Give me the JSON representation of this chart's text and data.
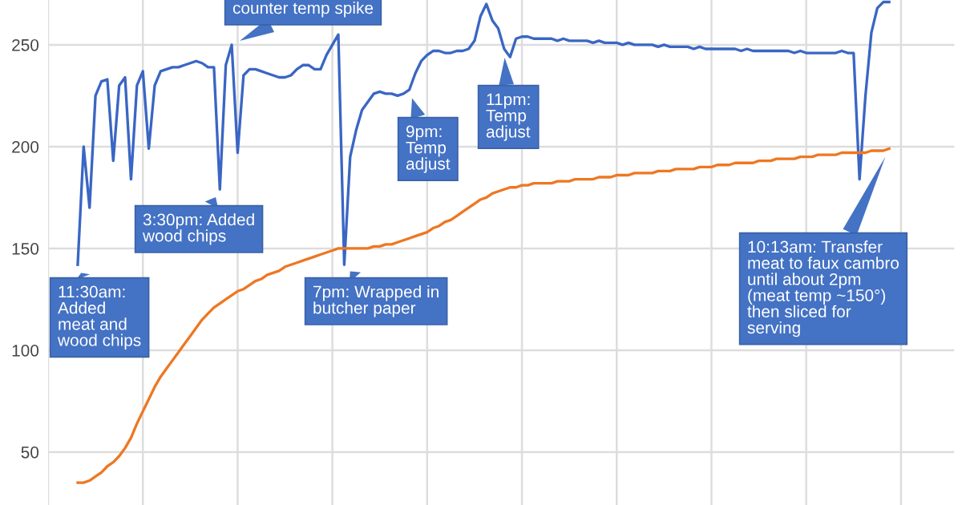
{
  "chart_data": {
    "type": "line",
    "categories": [
      null,
      null,
      null,
      null,
      null,
      null,
      null,
      null,
      null,
      null,
      null,
      null,
      null,
      null,
      null,
      null,
      null,
      null,
      null,
      null,
      null,
      null,
      null,
      null,
      null,
      null,
      null,
      null,
      null,
      null,
      null,
      null,
      null,
      null,
      null,
      null,
      null,
      null,
      null,
      null,
      null,
      null,
      null,
      null,
      null,
      null,
      null,
      null,
      null,
      null,
      null,
      null,
      null,
      null,
      null,
      null,
      null,
      null,
      null,
      null,
      null,
      null,
      null,
      null,
      null,
      null,
      null,
      null,
      null,
      null,
      null,
      null,
      null,
      null,
      null,
      null,
      null,
      null,
      null,
      null,
      null,
      null,
      null,
      null,
      null,
      null,
      null,
      null,
      null,
      null,
      null,
      null,
      null,
      null,
      null,
      null,
      null,
      null,
      null,
      null,
      null,
      null,
      null,
      null,
      null,
      null,
      null,
      null,
      null,
      null,
      null,
      null,
      null,
      null,
      null,
      null,
      null,
      null,
      null,
      null,
      null,
      null,
      null,
      null,
      null,
      null,
      null,
      null,
      null,
      null,
      null,
      null,
      null,
      null,
      null,
      null,
      null,
      null,
      null,
      null,
      null,
      null,
      null,
      null,
      null,
      null,
      null,
      null,
      null,
      null,
      null,
      null,
      null,
      null
    ],
    "series": [
      {
        "color": "#3a66c4",
        "values": [
          null,
          null,
          null,
          null,
          null,
          142,
          200,
          170,
          225,
          232,
          233,
          193,
          230,
          234,
          184,
          230,
          237,
          199,
          230,
          237,
          238,
          239,
          239,
          240,
          241,
          242,
          241,
          239,
          239,
          179,
          240,
          250,
          197,
          235,
          238,
          238,
          237,
          236,
          235,
          234,
          234,
          235,
          238,
          240,
          240,
          238,
          238,
          245,
          250,
          255,
          142,
          195,
          208,
          218,
          222,
          226,
          227,
          226,
          226,
          225,
          226,
          228,
          236,
          242,
          245,
          247,
          247,
          246,
          246,
          247,
          247,
          248,
          252,
          264,
          270,
          262,
          258,
          248,
          244,
          253,
          254,
          254,
          253,
          253,
          253,
          253,
          252,
          253,
          252,
          252,
          252,
          252,
          251,
          252,
          251,
          251,
          251,
          250,
          251,
          250,
          250,
          250,
          250,
          249,
          250,
          249,
          249,
          249,
          249,
          248,
          249,
          248,
          248,
          248,
          248,
          248,
          248,
          247,
          248,
          247,
          247,
          247,
          247,
          247,
          247,
          247,
          246,
          247,
          246,
          246,
          246,
          246,
          246,
          246,
          247,
          246,
          246,
          184,
          225,
          256,
          268,
          271,
          271,
          null,
          null,
          null,
          null,
          null,
          null,
          null,
          null,
          null,
          null,
          null
        ]
      },
      {
        "color": "#ee7722",
        "values": [
          null,
          null,
          null,
          null,
          null,
          35,
          35,
          36,
          38,
          40,
          43,
          45,
          48,
          52,
          57,
          64,
          70,
          76,
          82,
          87,
          91,
          95,
          99,
          103,
          107,
          111,
          115,
          118,
          121,
          123,
          125,
          127,
          129,
          130,
          132,
          134,
          135,
          137,
          138,
          139,
          141,
          142,
          143,
          144,
          145,
          146,
          147,
          148,
          149,
          150,
          150,
          150,
          150,
          150,
          150,
          151,
          151,
          152,
          152,
          153,
          154,
          155,
          156,
          157,
          158,
          160,
          161,
          163,
          164,
          166,
          168,
          170,
          172,
          174,
          175,
          177,
          178,
          179,
          180,
          180,
          181,
          181,
          182,
          182,
          182,
          182,
          183,
          183,
          183,
          184,
          184,
          184,
          184,
          185,
          185,
          185,
          186,
          186,
          186,
          187,
          187,
          187,
          187,
          188,
          188,
          188,
          189,
          189,
          189,
          189,
          190,
          190,
          190,
          191,
          191,
          191,
          192,
          192,
          192,
          192,
          193,
          193,
          193,
          194,
          194,
          194,
          194,
          195,
          195,
          195,
          196,
          196,
          196,
          196,
          197,
          197,
          197,
          197,
          197,
          198,
          198,
          198,
          199,
          null,
          null,
          null,
          null,
          null,
          null,
          null,
          null,
          null,
          null,
          null
        ]
      }
    ],
    "ylim": [
      24,
      272
    ],
    "yticks": [
      50,
      100,
      150,
      200,
      250
    ],
    "grid": true,
    "tick_labels": "y",
    "annotations": [
      "11:30am:\nAdded\nmeat and\nwood chips",
      "3:30pm: Added\nwood chips",
      "counter temp spike",
      "7pm: Wrapped in\nbutcher paper",
      "9pm:\nTemp\nadjust",
      "11pm:\nTemp\nadjust",
      "10:13am: Transfer\nmeat to faux cambro\nuntil about 2pm\n(meat temp ~150°)\nthen sliced for\nserving"
    ]
  }
}
